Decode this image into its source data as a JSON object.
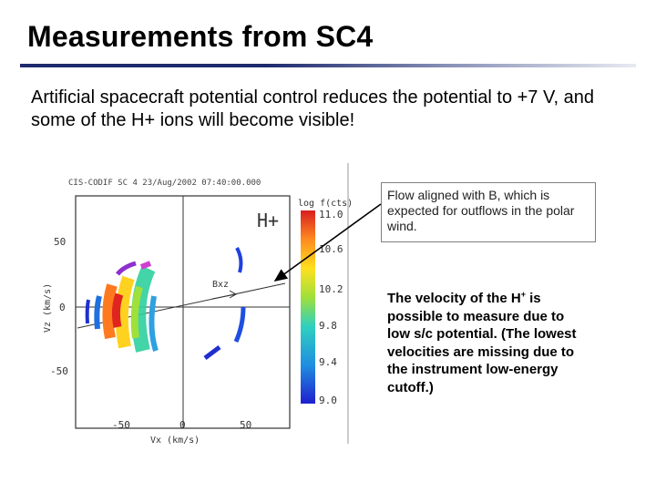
{
  "slide": {
    "title": "Measurements from SC4",
    "intro": "Artificial spacecraft potential control reduces the potential to +7 V, and some of the H+ ions will become visible!",
    "callout": "Flow aligned with B, which is expected for outflows in the polar wind.",
    "note_prefix": "The velocity of the H",
    "note_sup": "+",
    "note_suffix": " is possible to measure due to low s/c potential. (The lowest velocities are missing due to the instrument low-energy cutoff.)"
  },
  "plot": {
    "header": "CIS-CODIF SC 4 23/Aug/2002 07:40:00.000",
    "species": "H+",
    "b_label": "Bxz",
    "xlabel": "Vx (km/s)",
    "ylabel": "Vz (km/s)",
    "x_ticks": [
      "-50",
      "0",
      "50"
    ],
    "y_ticks": [
      "50",
      "0",
      "-50"
    ],
    "colorbar_title": "log f(cts)",
    "colorbar_ticks": [
      "11.0",
      "10.6",
      "10.2",
      "9.8",
      "9.4",
      "9.0"
    ],
    "colors": {
      "frame": "#333333",
      "low": "#1f1fcf",
      "high": "#d81f1f"
    }
  }
}
